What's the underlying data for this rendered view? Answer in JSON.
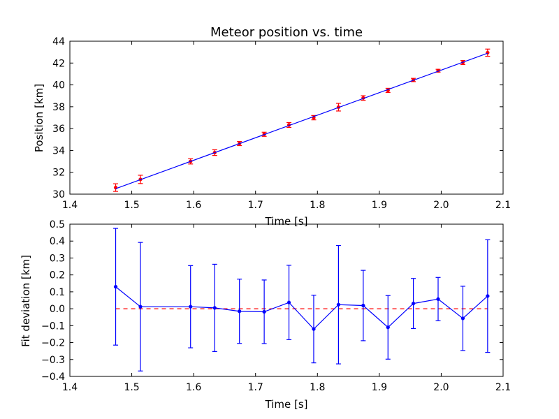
{
  "chart_data": [
    {
      "type": "scatter",
      "title": "Meteor position vs. time",
      "xlabel": "Time [s]",
      "ylabel": "Position [km]",
      "xlim": [
        1.4,
        2.1
      ],
      "ylim": [
        30,
        44
      ],
      "xticks": [
        "1.4",
        "1.5",
        "1.6",
        "1.7",
        "1.8",
        "1.9",
        "2.0",
        "2.1"
      ],
      "yticks": [
        "30",
        "32",
        "34",
        "36",
        "38",
        "40",
        "42",
        "44"
      ],
      "grid": false,
      "series": [
        {
          "kind": "errorbar",
          "color": "#ff0000",
          "points": [
            {
              "x": 1.474,
              "y": 30.6,
              "err": 0.35
            },
            {
              "x": 1.514,
              "y": 31.35,
              "err": 0.38
            },
            {
              "x": 1.595,
              "y": 33.0,
              "err": 0.24
            },
            {
              "x": 1.634,
              "y": 33.8,
              "err": 0.26
            },
            {
              "x": 1.674,
              "y": 34.63,
              "err": 0.19
            },
            {
              "x": 1.714,
              "y": 35.48,
              "err": 0.19
            },
            {
              "x": 1.754,
              "y": 36.33,
              "err": 0.22
            },
            {
              "x": 1.794,
              "y": 37.0,
              "err": 0.2
            },
            {
              "x": 1.834,
              "y": 37.96,
              "err": 0.35
            },
            {
              "x": 1.874,
              "y": 38.8,
              "err": 0.21
            },
            {
              "x": 1.914,
              "y": 39.5,
              "err": 0.19
            },
            {
              "x": 1.955,
              "y": 40.45,
              "err": 0.15
            },
            {
              "x": 1.995,
              "y": 41.3,
              "err": 0.13
            },
            {
              "x": 2.035,
              "y": 42.05,
              "err": 0.19
            },
            {
              "x": 2.075,
              "y": 42.95,
              "err": 0.33
            }
          ]
        },
        {
          "kind": "line",
          "color": "#0000ff",
          "points": [
            {
              "x": 1.474,
              "y": 30.5
            },
            {
              "x": 2.075,
              "y": 42.9
            }
          ]
        }
      ]
    },
    {
      "type": "line",
      "title": "",
      "xlabel": "Time [s]",
      "ylabel": "Fit deviation [km]",
      "xlim": [
        1.4,
        2.1
      ],
      "ylim": [
        -0.4,
        0.5
      ],
      "xticks": [
        "1.4",
        "1.5",
        "1.6",
        "1.7",
        "1.8",
        "1.9",
        "2.0",
        "2.1"
      ],
      "yticks": [
        "−0.4",
        "−0.3",
        "−0.2",
        "−0.1",
        "0.0",
        "0.1",
        "0.2",
        "0.3",
        "0.4",
        "0.5"
      ],
      "grid": false,
      "reference_line": {
        "y": 0,
        "color": "#ff0000",
        "style": "dashed"
      },
      "series": [
        {
          "kind": "errorbar-line",
          "color": "#0000ff",
          "points": [
            {
              "x": 1.474,
              "y": 0.13,
              "err": 0.345
            },
            {
              "x": 1.514,
              "y": 0.012,
              "err": 0.38
            },
            {
              "x": 1.595,
              "y": 0.012,
              "err": 0.243
            },
            {
              "x": 1.634,
              "y": 0.005,
              "err": 0.258
            },
            {
              "x": 1.674,
              "y": -0.015,
              "err": 0.19
            },
            {
              "x": 1.714,
              "y": -0.018,
              "err": 0.188
            },
            {
              "x": 1.754,
              "y": 0.037,
              "err": 0.22
            },
            {
              "x": 1.794,
              "y": -0.12,
              "err": 0.2
            },
            {
              "x": 1.834,
              "y": 0.024,
              "err": 0.35
            },
            {
              "x": 1.874,
              "y": 0.019,
              "err": 0.208
            },
            {
              "x": 1.914,
              "y": -0.11,
              "err": 0.188
            },
            {
              "x": 1.955,
              "y": 0.031,
              "err": 0.148
            },
            {
              "x": 1.995,
              "y": 0.057,
              "err": 0.128
            },
            {
              "x": 2.035,
              "y": -0.057,
              "err": 0.19
            },
            {
              "x": 2.075,
              "y": 0.075,
              "err": 0.333
            }
          ]
        }
      ]
    }
  ]
}
